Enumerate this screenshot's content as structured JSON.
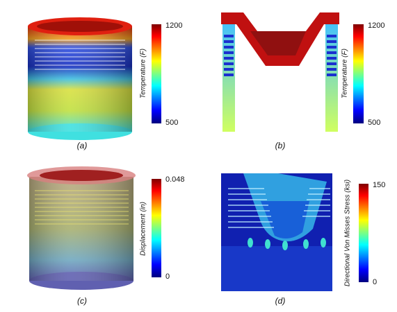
{
  "panels": [
    {
      "caption": "(a)",
      "colorbar": {
        "label": "Temperature (F)",
        "max": "1200",
        "min": "500"
      }
    },
    {
      "caption": "(b)",
      "colorbar": {
        "label": "Temperature (F)",
        "max": "1200",
        "min": "500"
      }
    },
    {
      "caption": "(c)",
      "colorbar": {
        "label": "Displacement (in)",
        "max": "0.048",
        "min": "0"
      }
    },
    {
      "caption": "(d)",
      "colorbar": {
        "label": "Directional Von Misses Stress (ksi)",
        "max": "150",
        "min": "0"
      }
    }
  ]
}
